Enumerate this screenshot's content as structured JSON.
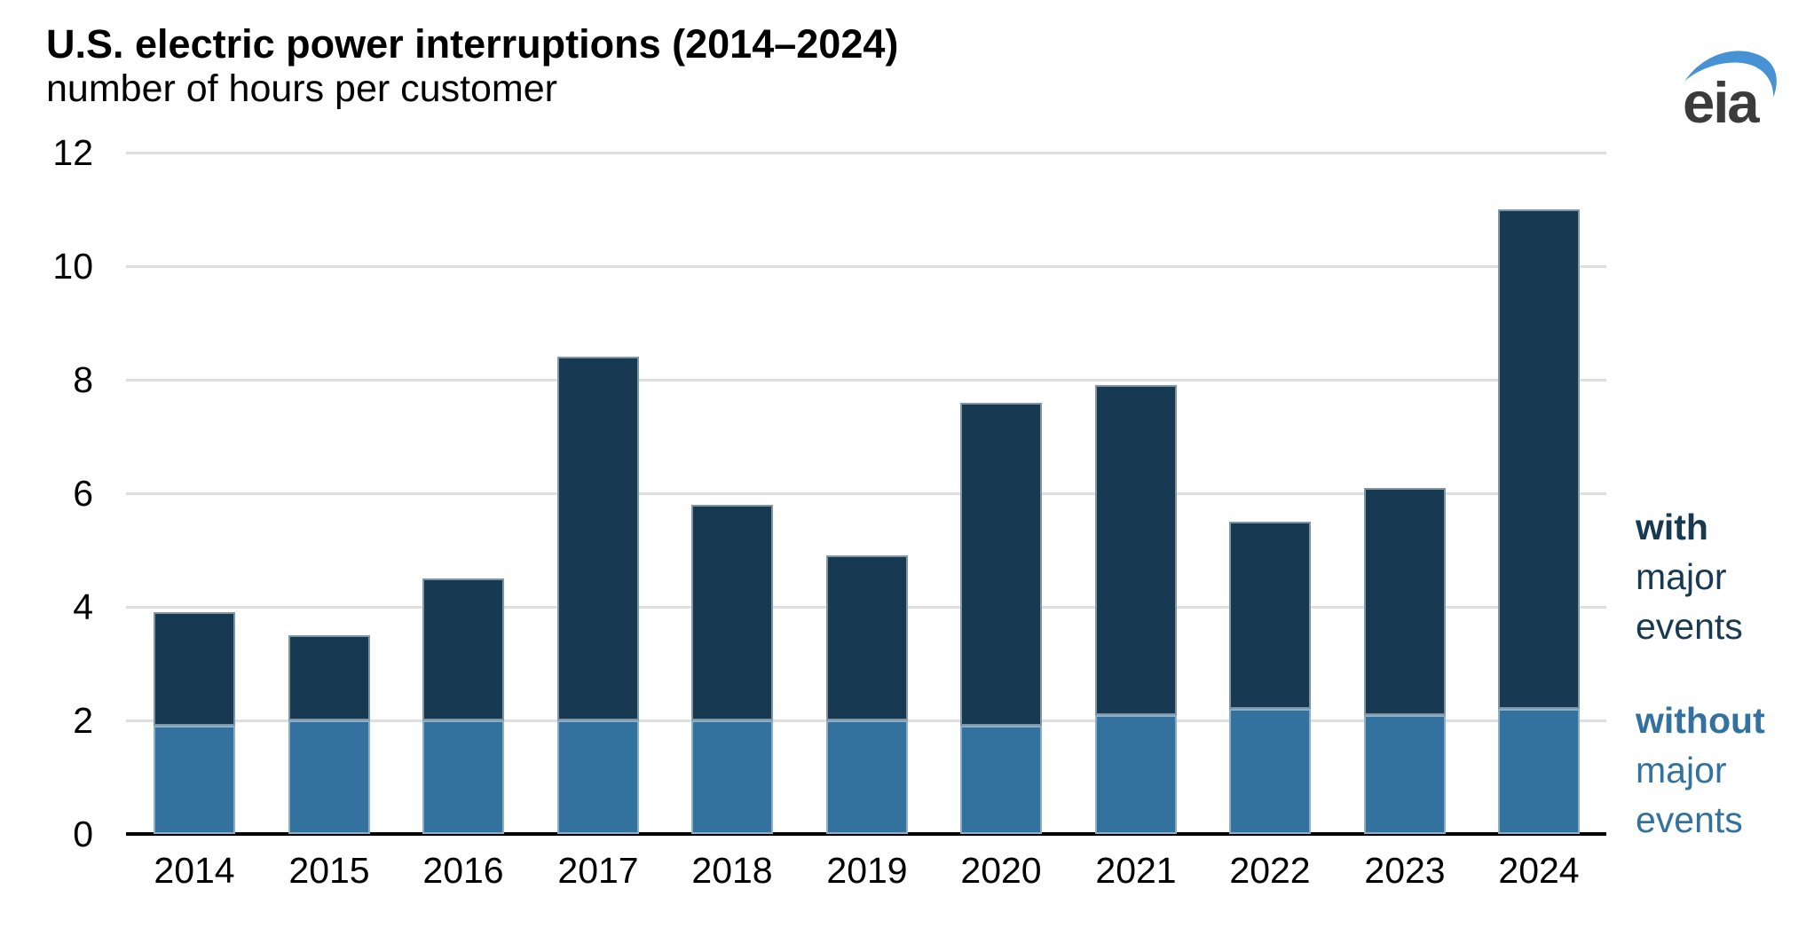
{
  "page": {
    "title": "U.S. electric power interruptions (2014–2024)",
    "subtitle": "number of hours per customer"
  },
  "logo": {
    "text": "eia"
  },
  "colors": {
    "with_major": "#173a52",
    "without_major": "#33719e",
    "gridline": "#dfdfdf",
    "axis": "#000000",
    "label_text": "#000000",
    "logo_swoosh": "#4792d4",
    "logo_text": "#3b3b3b"
  },
  "legend": {
    "with": {
      "bold": "with",
      "line2": "major",
      "line3": "events"
    },
    "without": {
      "bold": "without",
      "line2": "major",
      "line3": "events"
    }
  },
  "chart_data": {
    "type": "bar",
    "stacked": true,
    "title": "U.S. electric power interruptions (2014–2024)",
    "subtitle": "number of hours per customer",
    "xlabel": "",
    "ylabel": "number of hours per customer",
    "categories": [
      "2014",
      "2015",
      "2016",
      "2017",
      "2018",
      "2019",
      "2020",
      "2021",
      "2022",
      "2023",
      "2024"
    ],
    "series": [
      {
        "name": "without major events",
        "color": "#33719e",
        "values": [
          1.9,
          2.0,
          2.0,
          2.0,
          2.0,
          2.0,
          1.9,
          2.1,
          2.2,
          2.1,
          2.2
        ]
      },
      {
        "name": "with major events",
        "color": "#173a52",
        "values": [
          2.0,
          1.5,
          2.5,
          6.4,
          3.8,
          2.9,
          5.7,
          5.8,
          3.3,
          4.0,
          8.8
        ]
      }
    ],
    "totals": [
      3.9,
      3.5,
      4.5,
      8.4,
      5.8,
      4.9,
      7.6,
      7.9,
      5.5,
      6.1,
      11.0
    ],
    "ylim": [
      0,
      12
    ],
    "yticks": [
      0,
      2,
      4,
      6,
      8,
      10,
      12
    ],
    "grid": true,
    "legend_position": "right"
  }
}
